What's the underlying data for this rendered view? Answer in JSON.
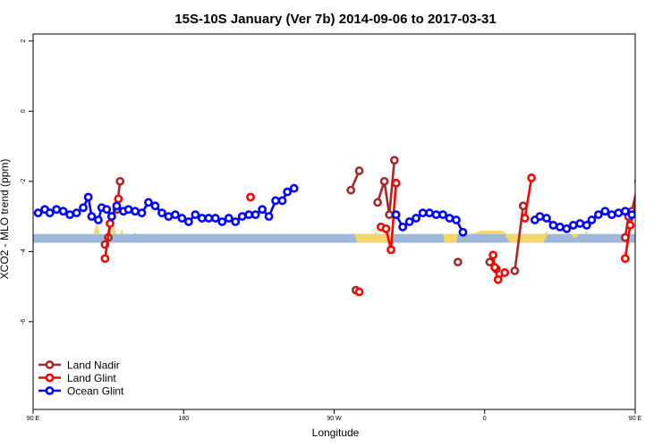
{
  "chart_data": {
    "type": "line",
    "title": "15S-10S January (Ver 7b)   2014-09-06 to 2017-03-31",
    "xlabel": "Longitude",
    "ylabel": "XCO2 - MLO trend (ppm)",
    "xlim": [
      -90,
      270
    ],
    "ylim": [
      -8.5,
      2.2
    ],
    "x_ticks": [
      {
        "value": -90,
        "label": "90 E"
      },
      {
        "value": 0,
        "label": "180"
      },
      {
        "value": 90,
        "label": "90 W"
      },
      {
        "value": 180,
        "label": "0"
      },
      {
        "value": 270,
        "label": "90 E"
      },
      {
        "value": 360,
        "label": "180"
      }
    ],
    "y_ticks": [
      {
        "value": 2,
        "label": "2"
      },
      {
        "value": 0,
        "label": "0"
      },
      {
        "value": -2,
        "label": "-2"
      },
      {
        "value": -4,
        "label": "-4"
      },
      {
        "value": -6,
        "label": "-6"
      }
    ],
    "grid": false,
    "legend_position": "bottom-left",
    "band": {
      "y_bottom": -3.75,
      "y_top": -3.5,
      "color": "#9db8d9"
    },
    "yellow_color": "#f5d66e",
    "yellow_shapes": [
      [
        [
          -54,
          -3.5
        ],
        [
          -52,
          -3.2
        ],
        [
          -50,
          -3.5
        ]
      ],
      [
        [
          -46,
          -3.5
        ],
        [
          -45,
          -3.3
        ],
        [
          -44,
          -3.5
        ]
      ],
      [
        [
          -43,
          -3.5
        ],
        [
          -42,
          -3.2
        ],
        [
          -40,
          -3.5
        ]
      ],
      [
        [
          -38,
          -3.5
        ],
        [
          -37,
          -3.35
        ],
        [
          -36,
          -3.5
        ]
      ],
      [
        [
          -30,
          -3.5
        ],
        [
          -29,
          -3.45
        ],
        [
          -28,
          -3.5
        ]
      ],
      [
        [
          102,
          -3.5
        ],
        [
          104,
          -3.75
        ],
        [
          124,
          -3.75
        ],
        [
          126,
          -3.5
        ]
      ],
      [
        [
          114,
          -3.5
        ],
        [
          115,
          -3.4
        ],
        [
          116,
          -3.5
        ]
      ],
      [
        [
          155,
          -3.5
        ],
        [
          156,
          -3.75
        ],
        [
          163,
          -3.75
        ],
        [
          164,
          -3.5
        ]
      ],
      [
        [
          172,
          -3.5
        ],
        [
          178,
          -3.4
        ],
        [
          190,
          -3.4
        ],
        [
          194,
          -3.5
        ]
      ],
      [
        [
          192,
          -3.5
        ],
        [
          195,
          -3.75
        ],
        [
          215,
          -3.75
        ],
        [
          218,
          -3.5
        ]
      ],
      [
        [
          216,
          -3.5
        ],
        [
          217,
          -3.42
        ],
        [
          218,
          -3.5
        ]
      ],
      [
        [
          232,
          -3.5
        ],
        [
          233,
          -3.6
        ],
        [
          235,
          -3.6
        ],
        [
          236,
          -3.5
        ]
      ],
      [
        [
          240,
          -3.5
        ],
        [
          241,
          -3.4
        ],
        [
          242,
          -3.5
        ]
      ],
      [
        [
          306,
          -3.5
        ],
        [
          308,
          -3.2
        ],
        [
          310,
          -3.5
        ]
      ],
      [
        [
          316,
          -3.5
        ],
        [
          318,
          -3.3
        ],
        [
          320,
          -3.5
        ]
      ],
      [
        [
          322,
          -3.5
        ],
        [
          323,
          -3.2
        ],
        [
          324,
          -3.5
        ]
      ]
    ],
    "series": [
      {
        "name": "Land Nadir",
        "color": "#a52a2a",
        "segments": [
          [
            [
              -45,
              -3.6
            ],
            [
              -43,
              -3.0
            ],
            [
              -40,
              -2.8
            ],
            [
              -38,
              -2.0
            ]
          ],
          [
            [
              -47,
              -3.8
            ]
          ],
          [
            [
              100,
              -2.25
            ],
            [
              105,
              -1.7
            ]
          ],
          [
            [
              103,
              -5.1
            ]
          ],
          [
            [
              116,
              -2.6
            ],
            [
              120,
              -2.0
            ],
            [
              123,
              -2.95
            ],
            [
              126,
              -1.4
            ]
          ],
          [
            [
              164,
              -4.3
            ]
          ],
          [
            [
              183,
              -4.3
            ],
            [
              187,
              -4.5
            ]
          ],
          [
            [
              198,
              -4.55
            ],
            [
              203,
              -2.7
            ]
          ],
          [
            [
              264,
              -3.6
            ],
            [
              266,
              -3.0
            ],
            [
              268,
              -2.85
            ],
            [
              272,
              -2.0
            ]
          ]
        ]
      },
      {
        "name": "Land Glint",
        "color": "#ff0000",
        "segments": [
          [
            [
              -47,
              -4.2
            ],
            [
              -44,
              -3.2
            ],
            [
              -39,
              -2.5
            ]
          ],
          [
            [
              40,
              -2.45
            ]
          ],
          [
            [
              105,
              -5.15
            ]
          ],
          [
            [
              118,
              -3.3
            ],
            [
              121,
              -3.35
            ],
            [
              124,
              -3.95
            ],
            [
              127,
              -2.05
            ]
          ],
          [
            [
              185,
              -4.1
            ],
            [
              186,
              -4.45
            ],
            [
              188,
              -4.8
            ],
            [
              192,
              -4.6
            ]
          ],
          [
            [
              204,
              -3.05
            ],
            [
              208,
              -1.9
            ]
          ],
          [
            [
              264,
              -4.2
            ],
            [
              267,
              -3.25
            ],
            [
              272,
              -2.5
            ]
          ]
        ]
      },
      {
        "name": "Ocean Glint",
        "color": "#0000ff",
        "segments": [
          [
            [
              -87,
              -2.9
            ],
            [
              -83,
              -2.8
            ],
            [
              -80,
              -2.9
            ],
            [
              -76,
              -2.8
            ],
            [
              -72,
              -2.85
            ],
            [
              -68,
              -2.95
            ],
            [
              -64,
              -2.9
            ],
            [
              -60,
              -2.75
            ],
            [
              -57,
              -2.45
            ],
            [
              -55,
              -3.0
            ],
            [
              -51,
              -3.1
            ],
            [
              -49,
              -2.75
            ],
            [
              -46,
              -2.8
            ],
            [
              -43,
              -3.0
            ],
            [
              -40,
              -2.7
            ],
            [
              -36,
              -2.85
            ],
            [
              -33,
              -2.8
            ],
            [
              -29,
              -2.85
            ],
            [
              -25,
              -2.9
            ],
            [
              -21,
              -2.6
            ],
            [
              -17,
              -2.7
            ],
            [
              -13,
              -2.9
            ],
            [
              -9,
              -3.0
            ],
            [
              -5,
              -2.95
            ],
            [
              -1,
              -3.05
            ],
            [
              3,
              -3.15
            ],
            [
              7,
              -2.95
            ],
            [
              11,
              -3.05
            ],
            [
              15,
              -3.05
            ],
            [
              19,
              -3.05
            ],
            [
              23,
              -3.15
            ],
            [
              27,
              -3.05
            ],
            [
              31,
              -3.15
            ],
            [
              35,
              -3.0
            ],
            [
              39,
              -2.95
            ],
            [
              43,
              -2.95
            ],
            [
              47,
              -2.8
            ],
            [
              51,
              -3.0
            ],
            [
              55,
              -2.55
            ],
            [
              59,
              -2.55
            ],
            [
              62,
              -2.3
            ],
            [
              66,
              -2.2
            ]
          ],
          [
            [
              127,
              -2.95
            ],
            [
              131,
              -3.3
            ],
            [
              135,
              -3.15
            ],
            [
              139,
              -3.05
            ],
            [
              143,
              -2.9
            ],
            [
              147,
              -2.9
            ],
            [
              151,
              -2.95
            ],
            [
              155,
              -2.95
            ],
            [
              159,
              -3.05
            ],
            [
              163,
              -3.1
            ],
            [
              167,
              -3.45
            ]
          ],
          [
            [
              210,
              -3.1
            ],
            [
              213,
              -3.0
            ],
            [
              217,
              -3.05
            ],
            [
              221,
              -3.25
            ],
            [
              225,
              -3.3
            ],
            [
              229,
              -3.35
            ],
            [
              233,
              -3.25
            ],
            [
              237,
              -3.2
            ],
            [
              241,
              -3.25
            ],
            [
              244,
              -3.1
            ],
            [
              248,
              -2.95
            ],
            [
              252,
              -2.85
            ],
            [
              256,
              -2.95
            ],
            [
              260,
              -2.9
            ],
            [
              264,
              -2.85
            ],
            [
              268,
              -2.95
            ],
            [
              272,
              -2.7
            ],
            [
              275,
              -2.45
            ],
            [
              277,
              -3.1
            ],
            [
              280,
              -2.75
            ],
            [
              284,
              -2.8
            ],
            [
              287,
              -3.0
            ],
            [
              290,
              -2.7
            ],
            [
              294,
              -2.85
            ],
            [
              298,
              -2.8
            ],
            [
              302,
              -2.85
            ],
            [
              306,
              -2.9
            ]
          ]
        ]
      }
    ]
  }
}
